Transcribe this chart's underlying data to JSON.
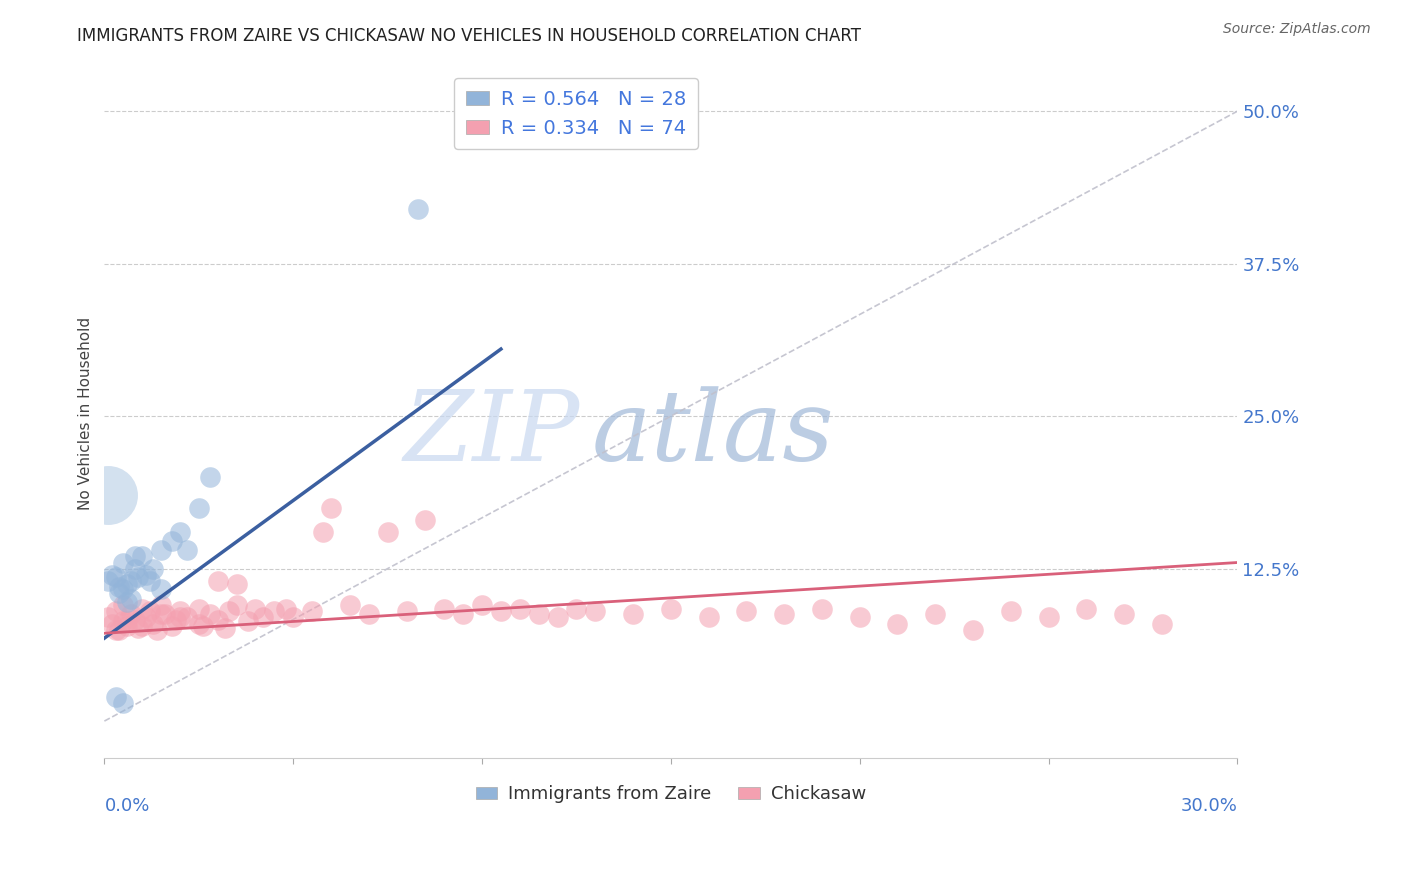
{
  "title": "IMMIGRANTS FROM ZAIRE VS CHICKASAW NO VEHICLES IN HOUSEHOLD CORRELATION CHART",
  "source": "Source: ZipAtlas.com",
  "ylabel": "No Vehicles in Household",
  "ytick_labels": [
    "12.5%",
    "25.0%",
    "37.5%",
    "50.0%"
  ],
  "ytick_values": [
    0.125,
    0.25,
    0.375,
    0.5
  ],
  "xlim": [
    0.0,
    0.3
  ],
  "ylim": [
    -0.03,
    0.535
  ],
  "blue_color": "#92B4D9",
  "pink_color": "#F4A0B0",
  "blue_line_color": "#3B5FA0",
  "pink_line_color": "#D9607A",
  "dashed_line_color": "#C0C0CC",
  "background_color": "#FFFFFF",
  "watermark_zip": "ZIP",
  "watermark_atlas": "atlas",
  "legend_label1": "R = 0.564   N = 28",
  "legend_label2": "R = 0.334   N = 74",
  "legend_label3": "Immigrants from Zaire",
  "legend_label4": "Chickasaw",
  "blue_line_x": [
    0.0,
    0.105
  ],
  "blue_line_y": [
    0.068,
    0.305
  ],
  "pink_line_x": [
    0.0,
    0.3
  ],
  "pink_line_y": [
    0.072,
    0.13
  ],
  "dash_line_x": [
    0.0,
    0.3
  ],
  "dash_line_y": [
    0.0,
    0.5
  ],
  "blue_x": [
    0.001,
    0.002,
    0.003,
    0.004,
    0.004,
    0.005,
    0.005,
    0.006,
    0.006,
    0.007,
    0.007,
    0.008,
    0.009,
    0.01,
    0.011,
    0.012,
    0.013,
    0.015,
    0.015,
    0.018,
    0.02,
    0.022,
    0.025,
    0.028,
    0.003,
    0.005,
    0.083,
    0.008
  ],
  "blue_y": [
    0.115,
    0.12,
    0.118,
    0.11,
    0.105,
    0.13,
    0.108,
    0.112,
    0.098,
    0.115,
    0.1,
    0.125,
    0.118,
    0.135,
    0.12,
    0.115,
    0.125,
    0.14,
    0.108,
    0.148,
    0.155,
    0.14,
    0.175,
    0.2,
    0.02,
    0.015,
    0.42,
    0.135
  ],
  "blue_large_x": [
    0.001
  ],
  "blue_large_y": [
    0.185
  ],
  "pink_x": [
    0.001,
    0.002,
    0.003,
    0.004,
    0.005,
    0.005,
    0.006,
    0.007,
    0.008,
    0.009,
    0.01,
    0.011,
    0.012,
    0.013,
    0.014,
    0.015,
    0.016,
    0.018,
    0.019,
    0.02,
    0.022,
    0.025,
    0.026,
    0.028,
    0.03,
    0.032,
    0.033,
    0.035,
    0.038,
    0.04,
    0.042,
    0.045,
    0.048,
    0.05,
    0.055,
    0.058,
    0.06,
    0.065,
    0.07,
    0.075,
    0.08,
    0.085,
    0.09,
    0.095,
    0.1,
    0.105,
    0.11,
    0.115,
    0.12,
    0.125,
    0.13,
    0.14,
    0.15,
    0.16,
    0.17,
    0.18,
    0.19,
    0.2,
    0.21,
    0.22,
    0.23,
    0.24,
    0.25,
    0.26,
    0.27,
    0.28,
    0.003,
    0.006,
    0.01,
    0.015,
    0.02,
    0.025,
    0.03,
    0.035
  ],
  "pink_y": [
    0.085,
    0.08,
    0.09,
    0.075,
    0.095,
    0.082,
    0.078,
    0.088,
    0.083,
    0.076,
    0.092,
    0.085,
    0.09,
    0.08,
    0.075,
    0.095,
    0.088,
    0.078,
    0.083,
    0.09,
    0.085,
    0.092,
    0.078,
    0.088,
    0.083,
    0.076,
    0.09,
    0.095,
    0.082,
    0.092,
    0.085,
    0.09,
    0.092,
    0.085,
    0.09,
    0.155,
    0.175,
    0.095,
    0.088,
    0.155,
    0.09,
    0.165,
    0.092,
    0.088,
    0.095,
    0.09,
    0.092,
    0.088,
    0.085,
    0.092,
    0.09,
    0.088,
    0.092,
    0.085,
    0.09,
    0.088,
    0.092,
    0.085,
    0.08,
    0.088,
    0.075,
    0.09,
    0.085,
    0.092,
    0.088,
    0.08,
    0.075,
    0.082,
    0.078,
    0.088,
    0.085,
    0.08,
    0.115,
    0.112
  ]
}
